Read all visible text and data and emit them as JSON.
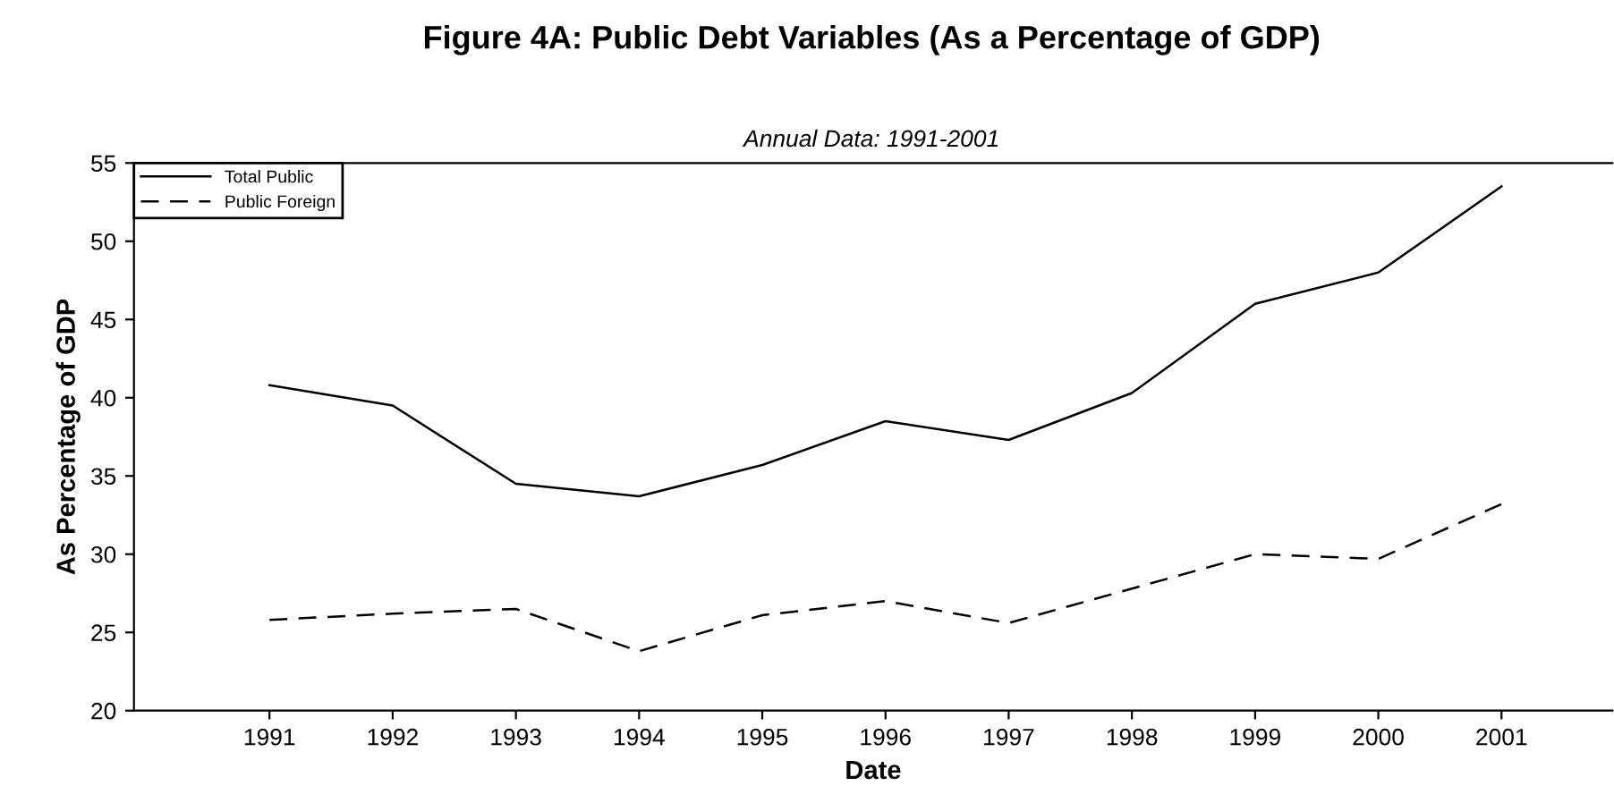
{
  "chart_data": {
    "type": "line",
    "title": "Figure 4A: Public Debt Variables (As a Percentage of GDP)",
    "subtitle": "Annual Data: 1991-2001",
    "xlabel": "Date",
    "ylabel": "As Percentage of GDP",
    "x": [
      1991,
      1992,
      1993,
      1994,
      1995,
      1996,
      1997,
      1998,
      1999,
      2000,
      2001
    ],
    "series": [
      {
        "name": "Total Public",
        "color": "#000000",
        "line_style": "solid",
        "values": [
          40.8,
          39.5,
          34.5,
          33.7,
          35.7,
          38.5,
          37.3,
          40.3,
          46.0,
          48.0,
          53.5
        ]
      },
      {
        "name": "Public Foreign",
        "color": "#000000",
        "line_style": "dashed",
        "values": [
          25.8,
          26.2,
          26.5,
          23.8,
          26.1,
          27.0,
          25.6,
          27.8,
          30.0,
          29.7,
          33.2
        ]
      }
    ],
    "xlim": [
      1989.9,
      2001.9
    ],
    "xticks": [
      1991,
      1992,
      1993,
      1994,
      1995,
      1996,
      1997,
      1998,
      1999,
      2000,
      2001
    ],
    "ylim": [
      20,
      55
    ],
    "yticks": [
      20,
      25,
      30,
      35,
      40,
      45,
      50,
      55
    ],
    "grid": false,
    "legend": "top left",
    "marker": "none"
  }
}
